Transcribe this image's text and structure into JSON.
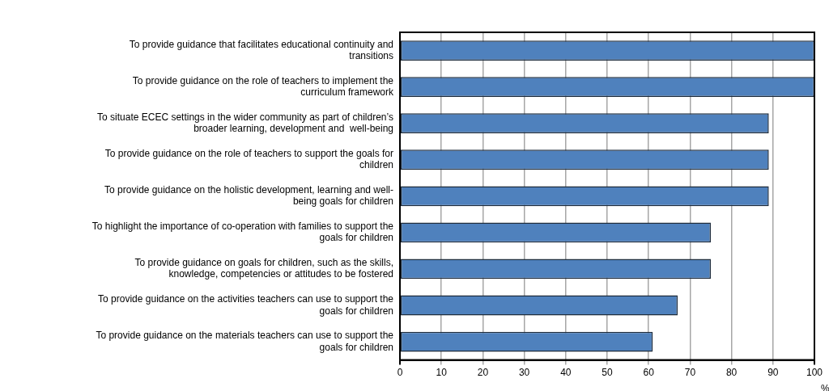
{
  "chart_data": {
    "type": "bar",
    "orientation": "horizontal",
    "categories": [
      "To provide guidance that facilitates educational continuity and\ntransitions",
      "To provide guidance on the role of teachers to implement the\ncurriculum framework",
      "To situate ECEC settings in the wider community as part of children’s\nbroader learning, development and  well-being",
      "To provide guidance on the role of teachers to support the goals for\nchildren",
      "To provide guidance on the holistic development, learning and well-\nbeing goals for children",
      "To highlight the importance of co-operation with families to support the\ngoals for children",
      "To provide guidance on goals for children, such as the skills,\nknowledge, competencies or attitudes to be fostered",
      "To provide guidance on the activities teachers can use to support the\ngoals for children",
      "To provide guidance on the materials teachers can use to support the\ngoals for children"
    ],
    "values": [
      100,
      100,
      89,
      89,
      89,
      75,
      75,
      67,
      61
    ],
    "color": "#4f81bd",
    "xlabel": "%",
    "xlim": [
      0,
      100
    ],
    "xticks": [
      0,
      10,
      20,
      30,
      40,
      50,
      60,
      70,
      80,
      90,
      100
    ],
    "grid": "x",
    "legend": false
  }
}
